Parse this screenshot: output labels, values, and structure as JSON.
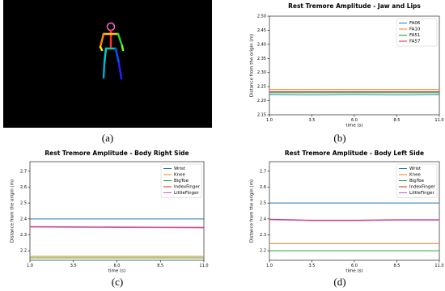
{
  "figure_a_label": "(a)",
  "chart_data": [
    {
      "type": "line",
      "panel": "(b)",
      "title": "Rest Tremore Amplitude - Jaw and Lips",
      "x_label": "time (s)",
      "y_label": "Distance from the origin (m)",
      "x": [
        1,
        3.5,
        6,
        8.5,
        11
      ],
      "series": [
        {
          "name": "FA06",
          "color": "#1f77b4",
          "values": [
            2.222,
            2.221,
            2.222,
            2.221,
            2.222
          ]
        },
        {
          "name": "FA10",
          "color": "#ff7f0e",
          "values": [
            2.24,
            2.24,
            2.24,
            2.24,
            2.24
          ]
        },
        {
          "name": "FA51",
          "color": "#2ca02c",
          "values": [
            2.228,
            2.228,
            2.228,
            2.228,
            2.228
          ]
        },
        {
          "name": "FA57",
          "color": "#d62728",
          "values": [
            2.232,
            2.232,
            2.232,
            2.232,
            2.232
          ]
        }
      ],
      "xlim": [
        1,
        11
      ],
      "xticks": [
        {
          "value": 1,
          "label": "1.0"
        },
        3.5,
        {
          "value": 6,
          "label": "6.0"
        },
        8.5,
        {
          "value": 11,
          "label": "11.0"
        }
      ],
      "ylim": [
        2.15,
        2.5
      ],
      "yticks": [
        2.15,
        {
          "value": 2.2,
          "label": "2.20"
        },
        2.25,
        {
          "value": 2.3,
          "label": "2.30"
        },
        2.35,
        {
          "value": 2.4,
          "label": "2.40"
        },
        2.45,
        {
          "value": 2.5,
          "label": "2.50"
        }
      ],
      "legend": "upper right",
      "grid": false
    },
    {
      "type": "line",
      "panel": "(c)",
      "title": "Rest Tremore Amplitude - Body Right Side",
      "x_label": "time (s)",
      "y_label": "Distance from the origin (m)",
      "x": [
        1,
        3.5,
        6,
        8.5,
        11
      ],
      "series": [
        {
          "name": "Wrist",
          "color": "#1f77b4",
          "values": [
            2.4,
            2.4,
            2.4,
            2.4,
            2.4
          ]
        },
        {
          "name": "Knee",
          "color": "#ff7f0e",
          "values": [
            2.165,
            2.165,
            2.165,
            2.165,
            2.165
          ]
        },
        {
          "name": "BigToe",
          "color": "#2ca02c",
          "values": [
            2.155,
            2.155,
            2.155,
            2.155,
            2.155
          ]
        },
        {
          "name": "IndexFinger",
          "color": "#d62728",
          "values": [
            2.352,
            2.35,
            2.349,
            2.348,
            2.347
          ]
        },
        {
          "name": "LittleFinger",
          "color": "#c05ad0",
          "values": [
            2.349,
            2.347,
            2.346,
            2.345,
            2.344
          ]
        }
      ],
      "xlim": [
        1,
        11
      ],
      "xticks": [
        {
          "value": 1,
          "label": "1.0"
        },
        3.5,
        {
          "value": 6,
          "label": "6.0"
        },
        8.5,
        {
          "value": 11,
          "label": "11.0"
        }
      ],
      "ylim": [
        2.14,
        2.76
      ],
      "yticks": [
        2.2,
        2.3,
        2.4,
        2.5,
        2.6,
        2.7
      ],
      "legend": "upper right",
      "grid": false
    },
    {
      "type": "line",
      "panel": "(d)",
      "title": "Rest Tremore Amplitude - Body Left Side",
      "x_label": "time (s)",
      "y_label": "Distance from the origin (m)",
      "x": [
        1,
        3.5,
        6,
        8.5,
        11
      ],
      "series": [
        {
          "name": "Wrist",
          "color": "#1f77b4",
          "values": [
            2.5,
            2.5,
            2.5,
            2.5,
            2.5
          ]
        },
        {
          "name": "Knee",
          "color": "#ff7f0e",
          "values": [
            2.245,
            2.245,
            2.245,
            2.245,
            2.245
          ]
        },
        {
          "name": "BigToe",
          "color": "#2ca02c",
          "values": [
            2.2,
            2.2,
            2.2,
            2.2,
            2.2
          ]
        },
        {
          "name": "IndexFinger",
          "color": "#d62728",
          "values": [
            2.398,
            2.392,
            2.392,
            2.395,
            2.395
          ]
        },
        {
          "name": "LittleFinger",
          "color": "#c05ad0",
          "values": [
            2.395,
            2.389,
            2.389,
            2.392,
            2.392
          ]
        }
      ],
      "xlim": [
        1,
        11
      ],
      "xticks": [
        {
          "value": 1,
          "label": "1.0"
        },
        3.5,
        {
          "value": 6,
          "label": "6.0"
        },
        8.5,
        {
          "value": 11,
          "label": "11.0"
        }
      ],
      "ylim": [
        2.14,
        2.76
      ],
      "yticks": [
        2.2,
        2.3,
        2.4,
        2.5,
        2.6,
        2.7
      ],
      "legend": "upper right",
      "grid": false
    }
  ]
}
